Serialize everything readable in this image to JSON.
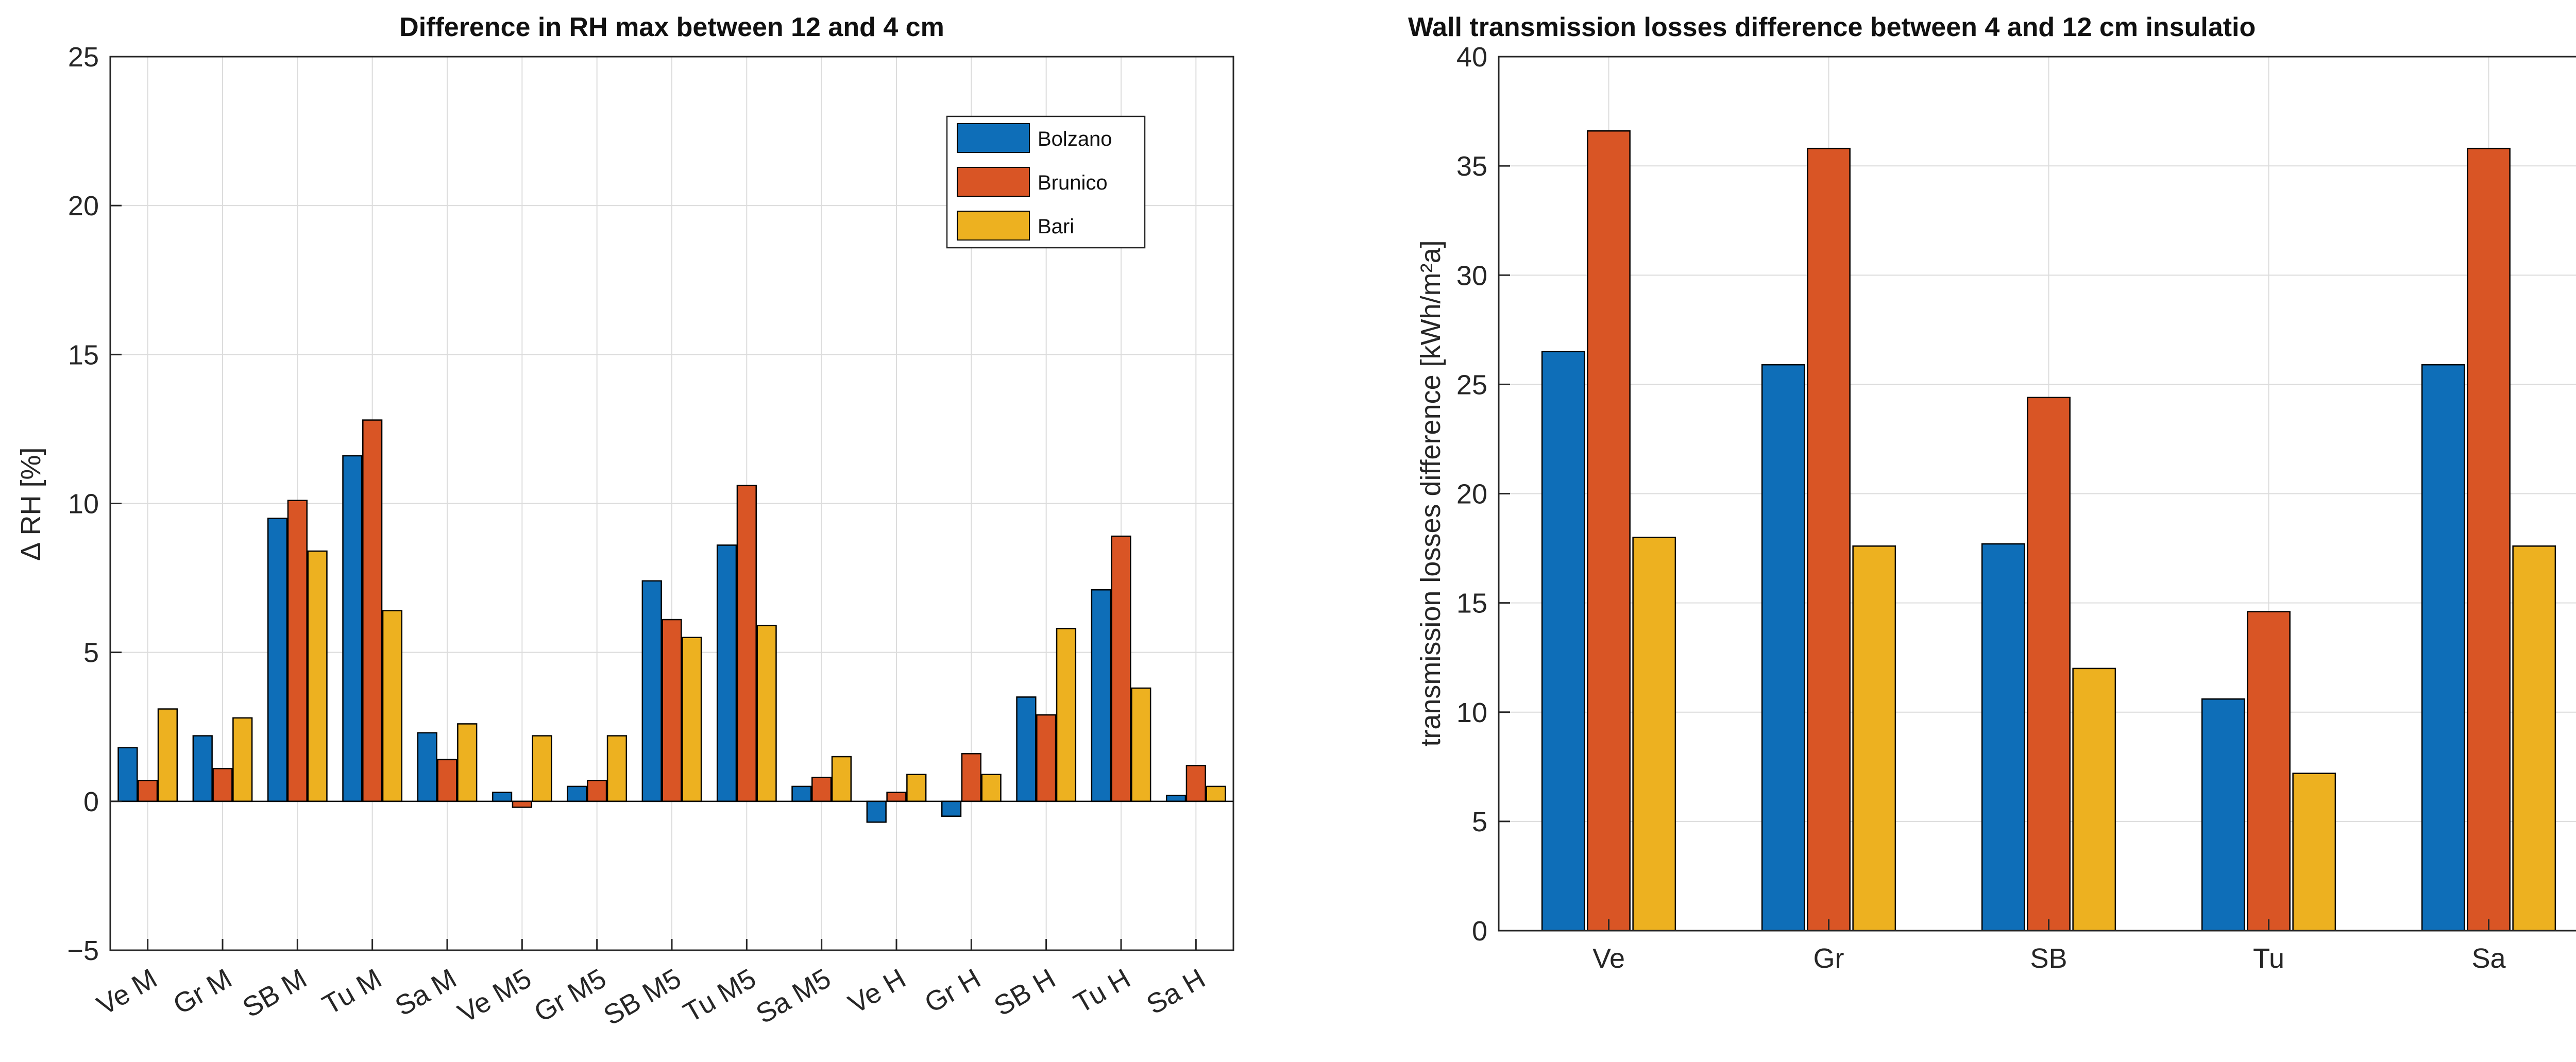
{
  "chart_data": [
    {
      "type": "bar",
      "title": "Difference in RH max between 12 and 4 cm",
      "xlabel": "",
      "ylabel": "∆ RH [%]",
      "ylim": [
        -5,
        25
      ],
      "yticks": [
        -5,
        0,
        5,
        10,
        15,
        20,
        25
      ],
      "ytick_labels": [
        "−5",
        "0",
        "5",
        "10",
        "15",
        "20",
        "25"
      ],
      "grid": true,
      "legend_position": "top-right",
      "categories": [
        "Ve M",
        "Gr M",
        "SB M",
        "Tu M",
        "Sa M",
        "Ve M5",
        "Gr M5",
        "SB M5",
        "Tu M5",
        "Sa M5",
        "Ve H",
        "Gr H",
        "SB H",
        "Tu H",
        "Sa H"
      ],
      "series": [
        {
          "name": "Bolzano",
          "color": "#0E6EB8",
          "values": [
            1.8,
            2.2,
            9.5,
            11.6,
            2.3,
            0.3,
            0.5,
            7.4,
            8.6,
            0.5,
            -0.7,
            -0.5,
            3.5,
            7.1,
            0.2
          ]
        },
        {
          "name": "Brunico",
          "color": "#D95525",
          "values": [
            0.7,
            1.1,
            10.1,
            12.8,
            1.4,
            -0.2,
            0.7,
            6.1,
            10.6,
            0.8,
            0.3,
            1.6,
            2.9,
            8.9,
            1.2
          ]
        },
        {
          "name": "Bari",
          "color": "#EDB120",
          "values": [
            3.1,
            2.8,
            8.4,
            6.4,
            2.6,
            2.2,
            2.2,
            5.5,
            5.9,
            1.5,
            0.9,
            0.9,
            5.8,
            3.8,
            0.5
          ]
        }
      ]
    },
    {
      "type": "bar",
      "title": "Wall transmission losses difference between 4 and 12 cm insulatio",
      "xlabel": "",
      "ylabel": "transmission losses difference [kWh/m²a]",
      "ylim": [
        0,
        40
      ],
      "yticks": [
        0,
        5,
        10,
        15,
        20,
        25,
        30,
        35,
        40
      ],
      "ytick_labels": [
        "0",
        "5",
        "10",
        "15",
        "20",
        "25",
        "30",
        "35",
        "40"
      ],
      "grid": true,
      "categories": [
        "Ve",
        "Gr",
        "SB",
        "Tu",
        "Sa"
      ],
      "series": [
        {
          "name": "Bolzano",
          "color": "#0E6EB8",
          "values": [
            26.5,
            25.9,
            17.7,
            10.6,
            25.9
          ]
        },
        {
          "name": "Brunico",
          "color": "#D95525",
          "values": [
            36.6,
            35.8,
            24.4,
            14.6,
            35.8
          ]
        },
        {
          "name": "Bari",
          "color": "#EDB120",
          "values": [
            18.0,
            17.6,
            12.0,
            7.2,
            17.6
          ]
        }
      ]
    }
  ]
}
